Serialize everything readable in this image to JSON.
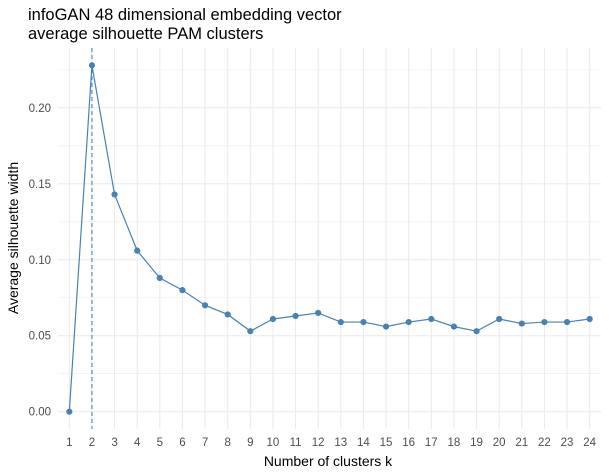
{
  "chart_data": {
    "type": "line",
    "title_line1": "infoGAN 48 dimensional embedding vector",
    "title_line2": "average silhouette PAM clusters",
    "xlabel": "Number of clusters k",
    "ylabel": "Average silhouette width",
    "x": [
      1,
      2,
      3,
      4,
      5,
      6,
      7,
      8,
      9,
      10,
      11,
      12,
      13,
      14,
      15,
      16,
      17,
      18,
      19,
      20,
      21,
      22,
      23,
      24
    ],
    "x_tick_labels": [
      "1",
      "2",
      "3",
      "4",
      "5",
      "6",
      "7",
      "8",
      "9",
      "10",
      "11",
      "12",
      "13",
      "14",
      "15",
      "16",
      "17",
      "18",
      "19",
      "20",
      "21",
      "22",
      "23",
      "24"
    ],
    "y": [
      0.0,
      0.228,
      0.143,
      0.106,
      0.088,
      0.08,
      0.07,
      0.064,
      0.053,
      0.061,
      0.063,
      0.065,
      0.059,
      0.059,
      0.056,
      0.059,
      0.061,
      0.056,
      0.053,
      0.061,
      0.058,
      0.059,
      0.059,
      0.061
    ],
    "y_ticks": [
      0.0,
      0.05,
      0.1,
      0.15,
      0.2
    ],
    "y_tick_labels": [
      "0.00",
      "0.05",
      "0.10",
      "0.15",
      "0.20"
    ],
    "xlim": [
      0.5,
      24.5
    ],
    "ylim": [
      -0.0114,
      0.2394
    ],
    "optimal_k": 2,
    "grid": true,
    "colors": {
      "series": "#4682b4",
      "grid": "#ebebeb"
    }
  }
}
